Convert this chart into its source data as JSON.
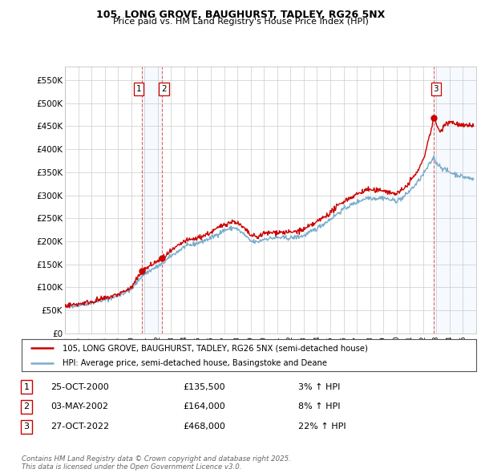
{
  "title_line1": "105, LONG GROVE, BAUGHURST, TADLEY, RG26 5NX",
  "title_line2": "Price paid vs. HM Land Registry's House Price Index (HPI)",
  "background_color": "#ffffff",
  "plot_bg_color": "#ffffff",
  "grid_color": "#cccccc",
  "sale_color": "#cc0000",
  "hpi_color": "#7aadcc",
  "ylim_min": 0,
  "ylim_max": 580000,
  "yticks": [
    0,
    50000,
    100000,
    150000,
    200000,
    250000,
    300000,
    350000,
    400000,
    450000,
    500000,
    550000
  ],
  "ytick_labels": [
    "£0",
    "£50K",
    "£100K",
    "£150K",
    "£200K",
    "£250K",
    "£300K",
    "£350K",
    "£400K",
    "£450K",
    "£500K",
    "£550K"
  ],
  "sale_points": [
    {
      "date_num": 2000.82,
      "price": 135500,
      "label": "1"
    },
    {
      "date_num": 2002.34,
      "price": 164000,
      "label": "2"
    },
    {
      "date_num": 2022.82,
      "price": 468000,
      "label": "3"
    }
  ],
  "sale1_date": 2000.82,
  "sale2_date": 2002.34,
  "sale3_date": 2022.82,
  "legend_sale_label": "105, LONG GROVE, BAUGHURST, TADLEY, RG26 5NX (semi-detached house)",
  "legend_hpi_label": "HPI: Average price, semi-detached house, Basingstoke and Deane",
  "ann_labels": [
    "1",
    "2",
    "3"
  ],
  "ann_dates": [
    "25-OCT-2000",
    "03-MAY-2002",
    "27-OCT-2022"
  ],
  "ann_prices": [
    "£135,500",
    "£164,000",
    "£468,000"
  ],
  "ann_hpi": [
    "3% ↑ HPI",
    "8% ↑ HPI",
    "22% ↑ HPI"
  ],
  "footer": "Contains HM Land Registry data © Crown copyright and database right 2025.\nThis data is licensed under the Open Government Licence v3.0.",
  "xmin": 1995.0,
  "xmax": 2026.0
}
